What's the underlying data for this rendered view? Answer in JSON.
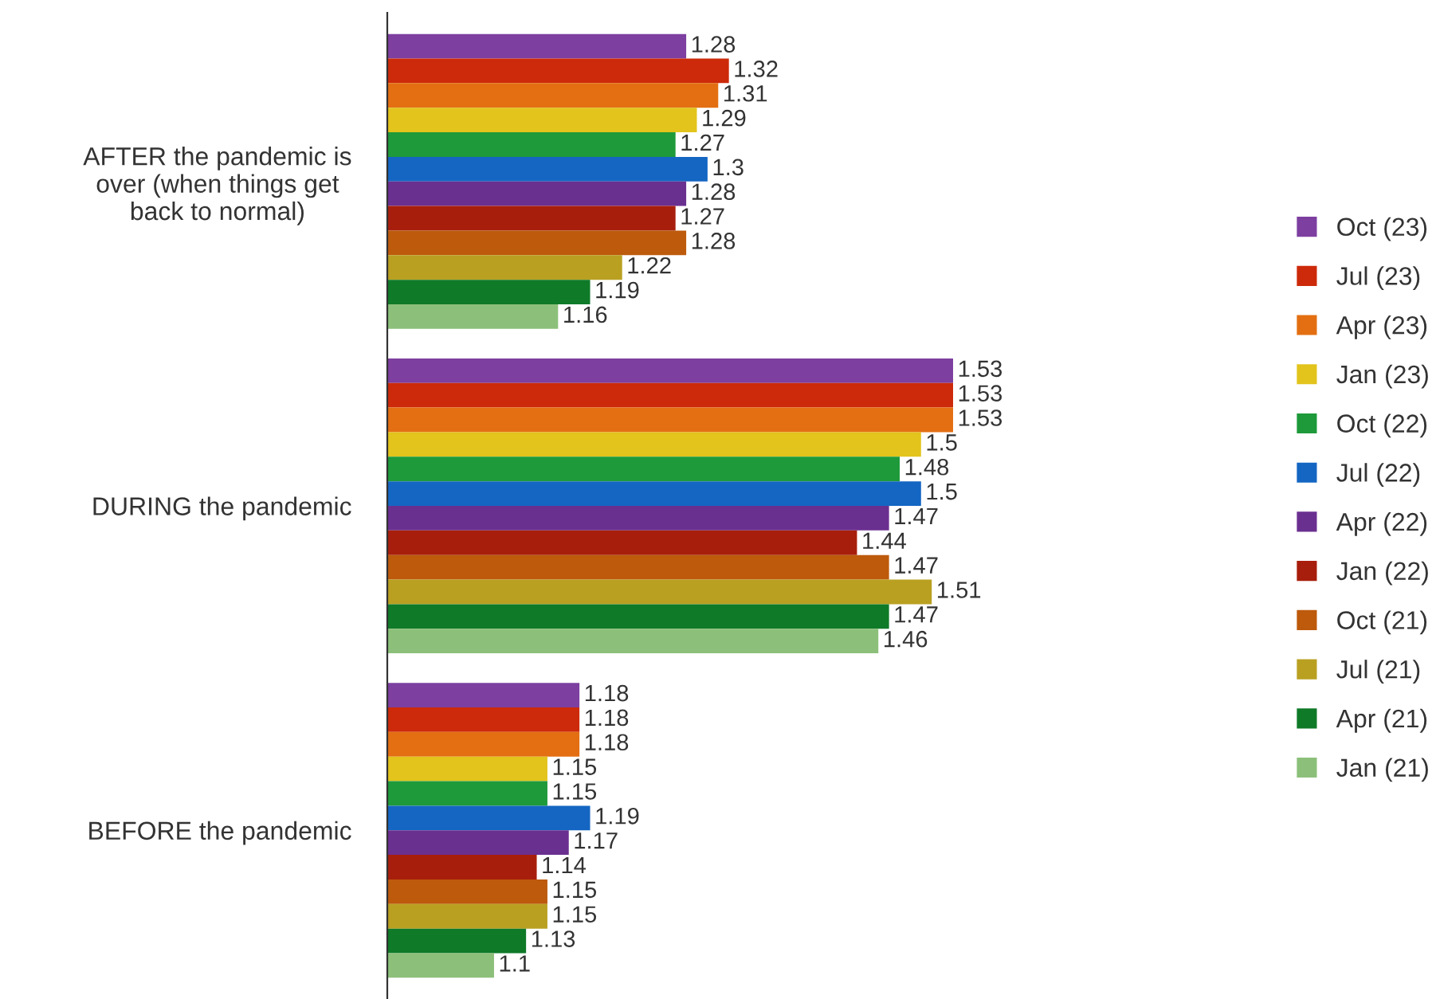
{
  "chart_data": {
    "type": "bar",
    "orientation": "horizontal",
    "categories": [
      "AFTER the pandemic is over (when things get back to normal)",
      "DURING the pandemic",
      "BEFORE the pandemic"
    ],
    "xlim": [
      1.0,
      1.53
    ],
    "data_labels": true,
    "legend": "right",
    "grid": false,
    "tick_labels": "y",
    "series": [
      {
        "name": "Oct (23)",
        "color": "#7d3fa0",
        "values": [
          1.28,
          1.53,
          1.18
        ]
      },
      {
        "name": "Jul (23)",
        "color": "#cc2a0a",
        "values": [
          1.32,
          1.53,
          1.18
        ]
      },
      {
        "name": "Apr (23)",
        "color": "#e36f12",
        "values": [
          1.31,
          1.53,
          1.18
        ]
      },
      {
        "name": "Jan (23)",
        "color": "#e2c41c",
        "values": [
          1.29,
          1.5,
          1.15
        ]
      },
      {
        "name": "Oct (22)",
        "color": "#1e9a3a",
        "values": [
          1.27,
          1.48,
          1.15
        ]
      },
      {
        "name": "Jul (22)",
        "color": "#1466c2",
        "values": [
          1.3,
          1.5,
          1.19
        ]
      },
      {
        "name": "Apr (22)",
        "color": "#6a3090",
        "values": [
          1.28,
          1.47,
          1.17
        ]
      },
      {
        "name": "Jan (22)",
        "color": "#a81e0c",
        "values": [
          1.27,
          1.44,
          1.14
        ]
      },
      {
        "name": "Oct (21)",
        "color": "#bd5a0c",
        "values": [
          1.28,
          1.47,
          1.15
        ]
      },
      {
        "name": "Jul (21)",
        "color": "#b9a021",
        "values": [
          1.22,
          1.51,
          1.15
        ]
      },
      {
        "name": "Apr (21)",
        "color": "#0f7a28",
        "values": [
          1.19,
          1.47,
          1.13
        ]
      },
      {
        "name": "Jan (21)",
        "color": "#8cc07a",
        "values": [
          1.16,
          1.46,
          1.1
        ]
      }
    ]
  }
}
